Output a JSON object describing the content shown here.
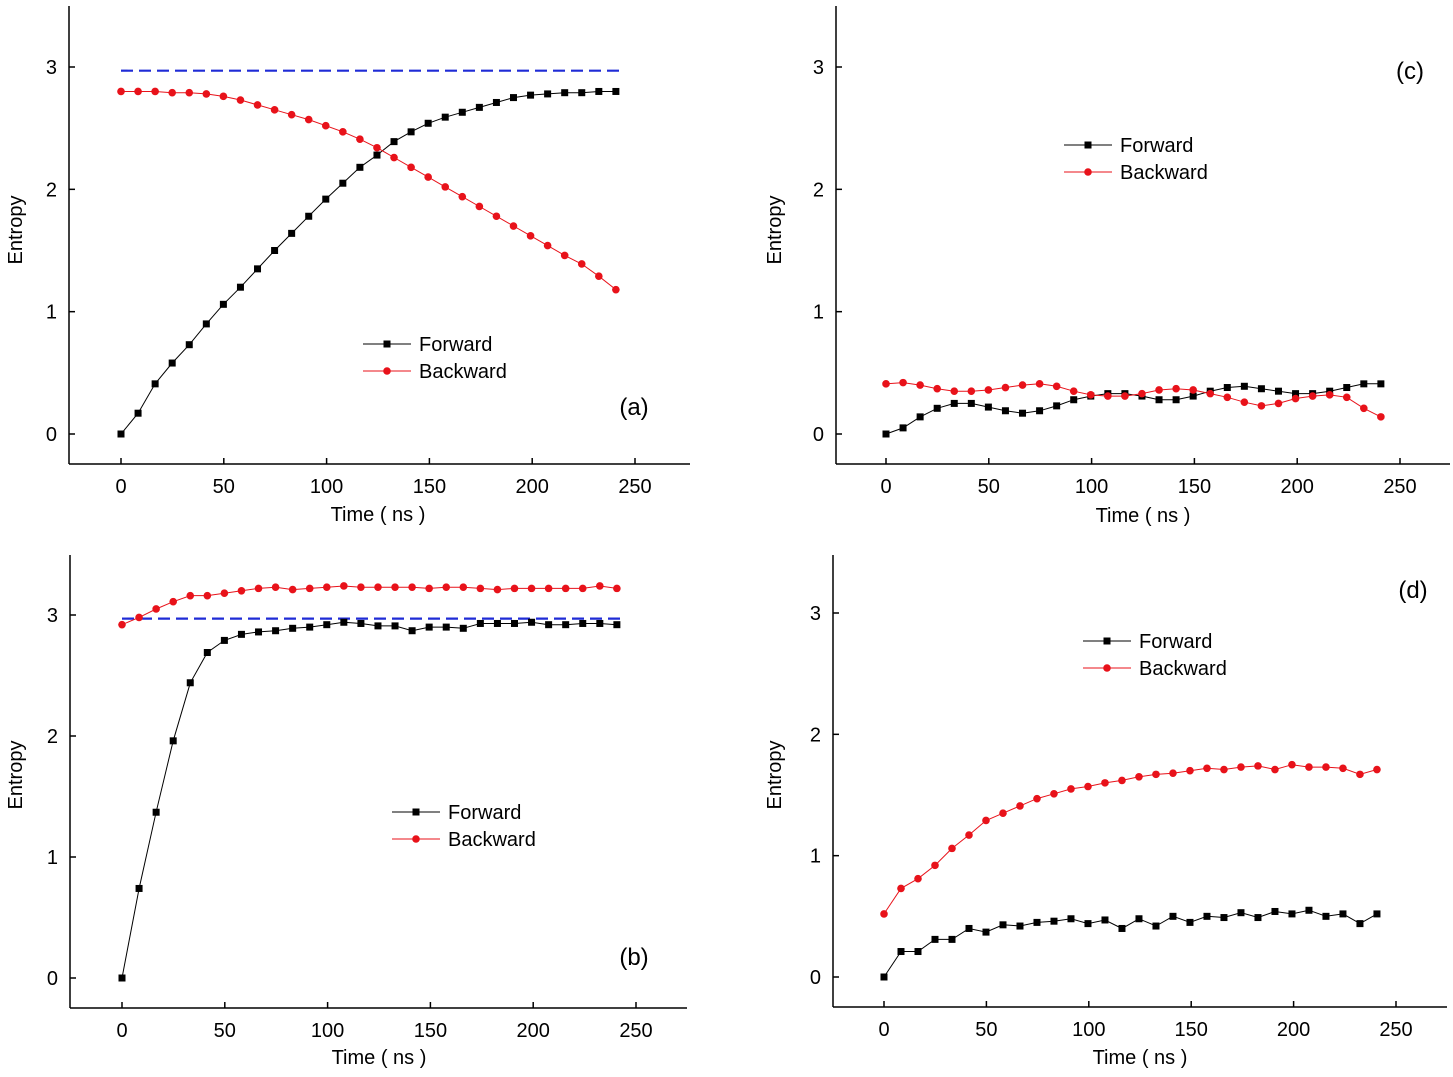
{
  "figure": {
    "description_free": true
  },
  "chart_data": [
    {
      "panel": "(a)",
      "type": "line",
      "xlabel": "Time ( ns )",
      "ylabel": "Entropy",
      "xlim": [
        -25,
        275
      ],
      "ylim": [
        -0.25,
        3.5
      ],
      "xticks": [
        0,
        50,
        100,
        150,
        200,
        250
      ],
      "yticks": [
        0,
        1,
        2,
        3
      ],
      "reference_line": {
        "y": 2.97,
        "x_range": [
          0,
          245
        ],
        "color": "#1f2bd6",
        "style": "dashed"
      },
      "legend_position": "center-right",
      "label_position": "bottom-right",
      "series": [
        {
          "name": "Forward",
          "color": "#000000",
          "marker": "square",
          "x": [
            0,
            8.3,
            16.6,
            24.9,
            33.2,
            41.5,
            49.8,
            58.1,
            66.4,
            74.7,
            83,
            91.3,
            99.6,
            107.9,
            116.2,
            124.5,
            132.8,
            141.1,
            149.4,
            157.7,
            166,
            174.3,
            182.6,
            190.9,
            199.2,
            207.5,
            215.8,
            224.1,
            232.4,
            240.7
          ],
          "values": [
            0,
            0.17,
            0.41,
            0.58,
            0.73,
            0.9,
            1.06,
            1.2,
            1.35,
            1.5,
            1.64,
            1.78,
            1.92,
            2.05,
            2.18,
            2.28,
            2.39,
            2.47,
            2.54,
            2.59,
            2.63,
            2.67,
            2.71,
            2.75,
            2.77,
            2.78,
            2.79,
            2.79,
            2.8,
            2.8
          ]
        },
        {
          "name": "Backward",
          "color": "#e8121a",
          "marker": "circle",
          "x": [
            0,
            8.3,
            16.6,
            24.9,
            33.2,
            41.5,
            49.8,
            58.1,
            66.4,
            74.7,
            83,
            91.3,
            99.6,
            107.9,
            116.2,
            124.5,
            132.8,
            141.1,
            149.4,
            157.7,
            166,
            174.3,
            182.6,
            190.9,
            199.2,
            207.5,
            215.8,
            224.1,
            232.4,
            240.7
          ],
          "values": [
            2.8,
            2.8,
            2.8,
            2.79,
            2.79,
            2.78,
            2.76,
            2.73,
            2.69,
            2.65,
            2.61,
            2.57,
            2.52,
            2.47,
            2.41,
            2.34,
            2.26,
            2.18,
            2.1,
            2.02,
            1.94,
            1.86,
            1.78,
            1.7,
            1.62,
            1.54,
            1.46,
            1.39,
            1.29,
            1.18
          ]
        }
      ]
    },
    {
      "panel": "(c)",
      "type": "line",
      "xlabel": "Time ( ns )",
      "ylabel": "Entropy",
      "xlim": [
        -25,
        275
      ],
      "ylim": [
        -0.25,
        3.5
      ],
      "xticks": [
        0,
        50,
        100,
        150,
        200,
        250
      ],
      "yticks": [
        0,
        1,
        2,
        3
      ],
      "legend_position": "center",
      "label_position": "top-right",
      "series": [
        {
          "name": "Forward",
          "color": "#000000",
          "marker": "square",
          "x": [
            0,
            8.3,
            16.6,
            24.9,
            33.2,
            41.5,
            49.8,
            58.1,
            66.4,
            74.7,
            83,
            91.3,
            99.6,
            107.9,
            116.2,
            124.5,
            132.8,
            141.1,
            149.4,
            157.7,
            166,
            174.3,
            182.6,
            190.9,
            199.2,
            207.5,
            215.8,
            224.1,
            232.4,
            240.7
          ],
          "values": [
            0,
            0.05,
            0.14,
            0.21,
            0.25,
            0.25,
            0.22,
            0.19,
            0.17,
            0.19,
            0.23,
            0.28,
            0.31,
            0.33,
            0.33,
            0.31,
            0.28,
            0.28,
            0.31,
            0.35,
            0.38,
            0.39,
            0.37,
            0.35,
            0.33,
            0.33,
            0.35,
            0.38,
            0.41,
            0.41
          ]
        },
        {
          "name": "Backward",
          "color": "#e8121a",
          "marker": "circle",
          "x": [
            0,
            8.3,
            16.6,
            24.9,
            33.2,
            41.5,
            49.8,
            58.1,
            66.4,
            74.7,
            83,
            91.3,
            99.6,
            107.9,
            116.2,
            124.5,
            132.8,
            141.1,
            149.4,
            157.7,
            166,
            174.3,
            182.6,
            190.9,
            199.2,
            207.5,
            215.8,
            224.1,
            232.4,
            240.7
          ],
          "values": [
            0.41,
            0.42,
            0.4,
            0.37,
            0.35,
            0.35,
            0.36,
            0.38,
            0.4,
            0.41,
            0.39,
            0.35,
            0.32,
            0.31,
            0.31,
            0.33,
            0.36,
            0.37,
            0.36,
            0.33,
            0.3,
            0.26,
            0.23,
            0.25,
            0.29,
            0.31,
            0.32,
            0.3,
            0.21,
            0.14
          ]
        }
      ]
    },
    {
      "panel": "(b)",
      "type": "line",
      "xlabel": "Time ( ns )",
      "ylabel": "Entropy",
      "xlim": [
        -25,
        275
      ],
      "ylim": [
        -0.25,
        3.5
      ],
      "xticks": [
        0,
        50,
        100,
        150,
        200,
        250
      ],
      "yticks": [
        0,
        1,
        2,
        3
      ],
      "reference_line": {
        "y": 2.97,
        "x_range": [
          0,
          245
        ],
        "color": "#1f2bd6",
        "style": "dashed"
      },
      "legend_position": "center-right",
      "label_position": "bottom-right",
      "series": [
        {
          "name": "Forward",
          "color": "#000000",
          "marker": "square",
          "x": [
            0,
            8.3,
            16.6,
            24.9,
            33.2,
            41.5,
            49.8,
            58.1,
            66.4,
            74.7,
            83,
            91.3,
            99.6,
            107.9,
            116.2,
            124.5,
            132.8,
            141.1,
            149.4,
            157.7,
            166,
            174.3,
            182.6,
            190.9,
            199.2,
            207.5,
            215.8,
            224.1,
            232.4,
            240.7
          ],
          "values": [
            0,
            0.74,
            1.37,
            1.96,
            2.44,
            2.69,
            2.79,
            2.84,
            2.86,
            2.87,
            2.89,
            2.9,
            2.92,
            2.94,
            2.93,
            2.91,
            2.91,
            2.87,
            2.9,
            2.9,
            2.89,
            2.93,
            2.93,
            2.93,
            2.94,
            2.92,
            2.92,
            2.93,
            2.93,
            2.92
          ]
        },
        {
          "name": "Backward",
          "color": "#e8121a",
          "marker": "circle",
          "x": [
            0,
            8.3,
            16.6,
            24.9,
            33.2,
            41.5,
            49.8,
            58.1,
            66.4,
            74.7,
            83,
            91.3,
            99.6,
            107.9,
            116.2,
            124.5,
            132.8,
            141.1,
            149.4,
            157.7,
            166,
            174.3,
            182.6,
            190.9,
            199.2,
            207.5,
            215.8,
            224.1,
            232.4,
            240.7
          ],
          "values": [
            2.92,
            2.98,
            3.05,
            3.11,
            3.16,
            3.16,
            3.18,
            3.2,
            3.22,
            3.23,
            3.21,
            3.22,
            3.23,
            3.24,
            3.23,
            3.23,
            3.23,
            3.23,
            3.22,
            3.23,
            3.23,
            3.22,
            3.21,
            3.22,
            3.22,
            3.22,
            3.22,
            3.22,
            3.24,
            3.22
          ]
        }
      ]
    },
    {
      "panel": "(d)",
      "type": "line",
      "xlabel": "Time ( ns )",
      "ylabel": "Entropy",
      "xlim": [
        -25,
        275
      ],
      "ylim": [
        -0.25,
        3.5
      ],
      "xticks": [
        0,
        50,
        100,
        150,
        200,
        250
      ],
      "yticks": [
        0,
        1,
        2,
        3
      ],
      "legend_position": "center",
      "label_position": "top-right",
      "series": [
        {
          "name": "Forward",
          "color": "#000000",
          "marker": "square",
          "x": [
            0,
            8.3,
            16.6,
            24.9,
            33.2,
            41.5,
            49.8,
            58.1,
            66.4,
            74.7,
            83,
            91.3,
            99.6,
            107.9,
            116.2,
            124.5,
            132.8,
            141.1,
            149.4,
            157.7,
            166,
            174.3,
            182.6,
            190.9,
            199.2,
            207.5,
            215.8,
            224.1,
            232.4,
            240.7
          ],
          "values": [
            0,
            0.21,
            0.21,
            0.31,
            0.31,
            0.4,
            0.37,
            0.43,
            0.42,
            0.45,
            0.46,
            0.48,
            0.44,
            0.47,
            0.4,
            0.48,
            0.42,
            0.5,
            0.45,
            0.5,
            0.49,
            0.53,
            0.49,
            0.54,
            0.52,
            0.55,
            0.5,
            0.52,
            0.44,
            0.52
          ]
        },
        {
          "name": "Backward",
          "color": "#e8121a",
          "marker": "circle",
          "x": [
            0,
            8.3,
            16.6,
            24.9,
            33.2,
            41.5,
            49.8,
            58.1,
            66.4,
            74.7,
            83,
            91.3,
            99.6,
            107.9,
            116.2,
            124.5,
            132.8,
            141.1,
            149.4,
            157.7,
            166,
            174.3,
            182.6,
            190.9,
            199.2,
            207.5,
            215.8,
            224.1,
            232.4,
            240.7
          ],
          "values": [
            0.52,
            0.73,
            0.81,
            0.92,
            1.06,
            1.17,
            1.29,
            1.35,
            1.41,
            1.47,
            1.51,
            1.55,
            1.57,
            1.6,
            1.62,
            1.65,
            1.67,
            1.68,
            1.7,
            1.72,
            1.71,
            1.73,
            1.74,
            1.71,
            1.75,
            1.73,
            1.73,
            1.72,
            1.67,
            1.71
          ]
        }
      ]
    }
  ]
}
